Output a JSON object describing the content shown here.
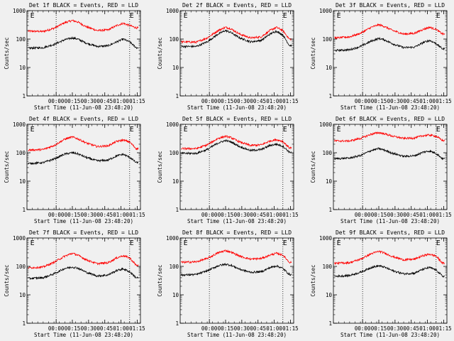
{
  "figure": {
    "background": "#f0f0f0",
    "axis_color": "#000000"
  },
  "chart_data": [
    {
      "type": "line",
      "title": "Det 1f BLACK = Events, RED = LLD",
      "xlabel": "Start Time (11-Jun-08 23:48:20)",
      "ylabel": "Counts/sec",
      "y_scale": "log",
      "ylim": [
        1,
        1000
      ],
      "yticks": [
        "1",
        "10",
        "100",
        "1000"
      ],
      "xlim_minutes_from_start": [
        -15,
        90
      ],
      "xticks": [
        "00:00",
        "00:15",
        "00:30",
        "00:45",
        "01:00",
        "01:15"
      ],
      "x_tick_minutes": [
        12,
        27,
        42,
        57,
        72,
        87
      ],
      "vlines_minutes": [
        12,
        80
      ],
      "markers": [
        {
          "text": "E",
          "at_minutes": -12
        },
        {
          "text": "E",
          "at_minutes": 80
        }
      ],
      "series": [
        {
          "label": "RED",
          "color": "#ff0000",
          "x_minutes": [
            -12,
            0,
            10,
            20,
            27,
            32,
            40,
            50,
            60,
            68,
            74,
            80,
            86
          ],
          "values": [
            190,
            185,
            240,
            380,
            450,
            400,
            270,
            200,
            210,
            300,
            360,
            300,
            250
          ]
        },
        {
          "label": "BLACK",
          "color": "#000000",
          "x_minutes": [
            -12,
            0,
            10,
            20,
            27,
            32,
            40,
            50,
            60,
            68,
            74,
            80,
            86
          ],
          "values": [
            48,
            50,
            65,
            95,
            110,
            100,
            72,
            55,
            58,
            80,
            100,
            80,
            50
          ]
        }
      ]
    },
    {
      "type": "line",
      "title": "Det 2f BLACK = Events, RED = LLD",
      "xlabel": "Start Time (11-Jun-08 23:48:20)",
      "ylabel": "Counts/sec",
      "y_scale": "log",
      "ylim": [
        1,
        1000
      ],
      "yticks": [
        "1",
        "10",
        "100",
        "1000"
      ],
      "xlim_minutes_from_start": [
        -15,
        90
      ],
      "xticks": [
        "00:00",
        "00:15",
        "00:30",
        "00:45",
        "01:00",
        "01:15"
      ],
      "x_tick_minutes": [
        12,
        27,
        42,
        57,
        72,
        87
      ],
      "vlines_minutes": [
        12,
        80
      ],
      "markers": [
        {
          "text": "E",
          "at_minutes": -12
        },
        {
          "text": "E",
          "at_minutes": 80
        }
      ],
      "series": [
        {
          "label": "RED",
          "color": "#ff0000",
          "x_minutes": [
            -12,
            0,
            10,
            20,
            27,
            32,
            40,
            50,
            60,
            68,
            74,
            80,
            86
          ],
          "values": [
            80,
            78,
            110,
            200,
            260,
            230,
            150,
            110,
            120,
            200,
            260,
            200,
            100
          ]
        },
        {
          "label": "BLACK",
          "color": "#000000",
          "x_minutes": [
            -12,
            0,
            10,
            20,
            27,
            32,
            40,
            50,
            60,
            68,
            74,
            80,
            86
          ],
          "values": [
            55,
            55,
            80,
            150,
            200,
            170,
            110,
            80,
            90,
            150,
            190,
            140,
            60
          ]
        }
      ]
    },
    {
      "type": "line",
      "title": "Det 3f BLACK = Events, RED = LLD",
      "xlabel": "Start Time (11-Jun-08 23:48:20)",
      "ylabel": "Counts/sec",
      "y_scale": "log",
      "ylim": [
        1,
        1000
      ],
      "yticks": [
        "1",
        "10",
        "100",
        "1000"
      ],
      "xlim_minutes_from_start": [
        -15,
        90
      ],
      "xticks": [
        "00:00",
        "00:15",
        "00:30",
        "00:45",
        "01:00",
        "01:15"
      ],
      "x_tick_minutes": [
        12,
        27,
        42,
        57,
        72,
        87
      ],
      "vlines_minutes": [
        12,
        80
      ],
      "markers": [
        {
          "text": "E",
          "at_minutes": -12
        },
        {
          "text": "E",
          "at_minutes": 80
        }
      ],
      "series": [
        {
          "label": "RED",
          "color": "#ff0000",
          "x_minutes": [
            -12,
            0,
            10,
            20,
            27,
            32,
            40,
            50,
            60,
            68,
            74,
            80,
            86
          ],
          "values": [
            110,
            120,
            160,
            260,
            320,
            280,
            200,
            150,
            160,
            220,
            260,
            220,
            150
          ]
        },
        {
          "label": "BLACK",
          "color": "#000000",
          "x_minutes": [
            -12,
            0,
            10,
            20,
            27,
            32,
            40,
            50,
            60,
            68,
            74,
            80,
            86
          ],
          "values": [
            40,
            42,
            55,
            85,
            105,
            95,
            68,
            50,
            52,
            75,
            90,
            70,
            45
          ]
        }
      ]
    },
    {
      "type": "line",
      "title": "Det 4f BLACK = Events, RED = LLD",
      "xlabel": "Start Time (11-Jun-08 23:48:20)",
      "ylabel": "Counts/sec",
      "y_scale": "log",
      "ylim": [
        1,
        1000
      ],
      "yticks": [
        "1",
        "10",
        "100",
        "1000"
      ],
      "xlim_minutes_from_start": [
        -15,
        90
      ],
      "xticks": [
        "00:00",
        "00:15",
        "00:30",
        "00:45",
        "01:00",
        "01:15"
      ],
      "x_tick_minutes": [
        12,
        27,
        42,
        57,
        72,
        87
      ],
      "vlines_minutes": [
        12,
        80
      ],
      "markers": [
        {
          "text": "E",
          "at_minutes": -12
        },
        {
          "text": "E",
          "at_minutes": 80
        }
      ],
      "series": [
        {
          "label": "RED",
          "color": "#ff0000",
          "x_minutes": [
            -12,
            0,
            10,
            20,
            27,
            32,
            40,
            50,
            60,
            68,
            74,
            80,
            86
          ],
          "values": [
            125,
            130,
            180,
            300,
            360,
            310,
            220,
            165,
            175,
            250,
            280,
            240,
            140
          ]
        },
        {
          "label": "BLACK",
          "color": "#000000",
          "x_minutes": [
            -12,
            0,
            10,
            20,
            27,
            32,
            40,
            50,
            60,
            68,
            74,
            80,
            86
          ],
          "values": [
            42,
            45,
            60,
            90,
            100,
            92,
            68,
            52,
            55,
            78,
            88,
            70,
            45
          ]
        }
      ]
    },
    {
      "type": "line",
      "title": "Det 5f BLACK = Events, RED = LLD",
      "xlabel": "Start Time (11-Jun-08 23:48:20)",
      "ylabel": "Counts/sec",
      "y_scale": "log",
      "ylim": [
        1,
        1000
      ],
      "yticks": [
        "1",
        "10",
        "100",
        "1000"
      ],
      "xlim_minutes_from_start": [
        -15,
        90
      ],
      "xticks": [
        "00:00",
        "00:15",
        "00:30",
        "00:45",
        "01:00",
        "01:15"
      ],
      "x_tick_minutes": [
        12,
        27,
        42,
        57,
        72,
        87
      ],
      "vlines_minutes": [
        12,
        80
      ],
      "markers": [
        {
          "text": "E",
          "at_minutes": -12
        },
        {
          "text": "E",
          "at_minutes": 80
        }
      ],
      "series": [
        {
          "label": "RED",
          "color": "#ff0000",
          "x_minutes": [
            -12,
            0,
            10,
            20,
            27,
            32,
            40,
            50,
            60,
            68,
            74,
            80,
            86
          ],
          "values": [
            140,
            140,
            190,
            320,
            380,
            340,
            240,
            180,
            190,
            260,
            290,
            250,
            150
          ]
        },
        {
          "label": "BLACK",
          "color": "#000000",
          "x_minutes": [
            -12,
            0,
            10,
            20,
            27,
            32,
            40,
            50,
            60,
            68,
            74,
            80,
            86
          ],
          "values": [
            95,
            95,
            130,
            220,
            270,
            240,
            165,
            120,
            130,
            180,
            200,
            170,
            105
          ]
        }
      ]
    },
    {
      "type": "line",
      "title": "Det 6f BLACK = Events, RED = LLD",
      "xlabel": "Start Time (11-Jun-08 23:48:20)",
      "ylabel": "Counts/sec",
      "y_scale": "log",
      "ylim": [
        1,
        1000
      ],
      "yticks": [
        "1",
        "10",
        "100",
        "1000"
      ],
      "xlim_minutes_from_start": [
        -15,
        90
      ],
      "xticks": [
        "00:00",
        "00:15",
        "00:30",
        "00:45",
        "01:00",
        "01:15"
      ],
      "x_tick_minutes": [
        12,
        27,
        42,
        57,
        72,
        87
      ],
      "vlines_minutes": [
        12,
        80
      ],
      "markers": [
        {
          "text": "E",
          "at_minutes": -12
        },
        {
          "text": "E",
          "at_minutes": 80
        }
      ],
      "series": [
        {
          "label": "RED",
          "color": "#ff0000",
          "x_minutes": [
            -12,
            0,
            10,
            20,
            27,
            32,
            40,
            50,
            60,
            68,
            74,
            80,
            86
          ],
          "values": [
            260,
            260,
            320,
            450,
            510,
            470,
            380,
            320,
            330,
            400,
            420,
            380,
            270
          ]
        },
        {
          "label": "BLACK",
          "color": "#000000",
          "x_minutes": [
            -12,
            0,
            10,
            20,
            27,
            32,
            40,
            50,
            60,
            68,
            74,
            80,
            86
          ],
          "values": [
            62,
            65,
            80,
            120,
            140,
            125,
            95,
            75,
            78,
            105,
            115,
            95,
            62
          ]
        }
      ]
    },
    {
      "type": "line",
      "title": "Det 7f BLACK = Events, RED = LLD",
      "xlabel": "Start Time (11-Jun-08 23:48:20)",
      "ylabel": "Counts/sec",
      "y_scale": "log",
      "ylim": [
        1,
        1000
      ],
      "yticks": [
        "1",
        "10",
        "100",
        "1000"
      ],
      "xlim_minutes_from_start": [
        -15,
        90
      ],
      "xticks": [
        "00:00",
        "00:15",
        "00:30",
        "00:45",
        "01:00",
        "01:15"
      ],
      "x_tick_minutes": [
        12,
        27,
        42,
        57,
        72,
        87
      ],
      "vlines_minutes": [
        12,
        80
      ],
      "markers": [
        {
          "text": "E",
          "at_minutes": -12
        },
        {
          "text": "E",
          "at_minutes": 80
        }
      ],
      "series": [
        {
          "label": "RED",
          "color": "#ff0000",
          "x_minutes": [
            -12,
            0,
            10,
            20,
            27,
            32,
            40,
            50,
            60,
            68,
            74,
            80,
            86
          ],
          "values": [
            90,
            95,
            140,
            230,
            290,
            250,
            170,
            125,
            135,
            200,
            240,
            200,
            110
          ]
        },
        {
          "label": "BLACK",
          "color": "#000000",
          "x_minutes": [
            -12,
            0,
            10,
            20,
            27,
            32,
            40,
            50,
            60,
            68,
            74,
            80,
            86
          ],
          "values": [
            38,
            40,
            55,
            85,
            95,
            88,
            62,
            46,
            50,
            72,
            82,
            65,
            40
          ]
        }
      ]
    },
    {
      "type": "line",
      "title": "Det 8f BLACK = Events, RED = LLD",
      "xlabel": "Start Time (11-Jun-08 23:48:20)",
      "ylabel": "Counts/sec",
      "y_scale": "log",
      "ylim": [
        1,
        1000
      ],
      "yticks": [
        "1",
        "10",
        "100",
        "1000"
      ],
      "xlim_minutes_from_start": [
        -15,
        90
      ],
      "xticks": [
        "00:00",
        "00:15",
        "00:30",
        "00:45",
        "01:00",
        "01:15"
      ],
      "x_tick_minutes": [
        12,
        27,
        42,
        57,
        72,
        87
      ],
      "vlines_minutes": [
        12,
        80
      ],
      "markers": [
        {
          "text": "E",
          "at_minutes": -12
        },
        {
          "text": "E",
          "at_minutes": 80
        }
      ],
      "series": [
        {
          "label": "RED",
          "color": "#ff0000",
          "x_minutes": [
            -12,
            0,
            10,
            20,
            27,
            32,
            40,
            50,
            60,
            68,
            74,
            80,
            86
          ],
          "values": [
            140,
            145,
            190,
            300,
            360,
            320,
            230,
            180,
            190,
            250,
            290,
            250,
            140
          ]
        },
        {
          "label": "BLACK",
          "color": "#000000",
          "x_minutes": [
            -12,
            0,
            10,
            20,
            27,
            32,
            40,
            50,
            60,
            68,
            74,
            80,
            86
          ],
          "values": [
            50,
            52,
            70,
            105,
            120,
            110,
            80,
            62,
            65,
            90,
            105,
            85,
            52
          ]
        }
      ]
    },
    {
      "type": "line",
      "title": "Det 9f BLACK = Events, RED = LLD",
      "xlabel": "Start Time (11-Jun-08 23:48:20)",
      "ylabel": "Counts/sec",
      "y_scale": "log",
      "ylim": [
        1,
        1000
      ],
      "yticks": [
        "1",
        "10",
        "100",
        "1000"
      ],
      "xlim_minutes_from_start": [
        -15,
        90
      ],
      "xticks": [
        "00:00",
        "00:15",
        "00:30",
        "00:45",
        "01:00",
        "01:15"
      ],
      "x_tick_minutes": [
        12,
        27,
        42,
        57,
        72,
        87
      ],
      "vlines_minutes": [
        12,
        80
      ],
      "markers": [
        {
          "text": "E",
          "at_minutes": -12
        },
        {
          "text": "E",
          "at_minutes": 80
        }
      ],
      "series": [
        {
          "label": "RED",
          "color": "#ff0000",
          "x_minutes": [
            -12,
            0,
            10,
            20,
            27,
            32,
            40,
            50,
            60,
            68,
            74,
            80,
            86
          ],
          "values": [
            130,
            135,
            180,
            280,
            340,
            300,
            220,
            170,
            180,
            240,
            270,
            230,
            130
          ]
        },
        {
          "label": "BLACK",
          "color": "#000000",
          "x_minutes": [
            -12,
            0,
            10,
            20,
            27,
            32,
            40,
            50,
            60,
            68,
            74,
            80,
            86
          ],
          "values": [
            45,
            48,
            62,
            92,
            105,
            95,
            70,
            55,
            58,
            80,
            92,
            75,
            45
          ]
        }
      ]
    }
  ]
}
